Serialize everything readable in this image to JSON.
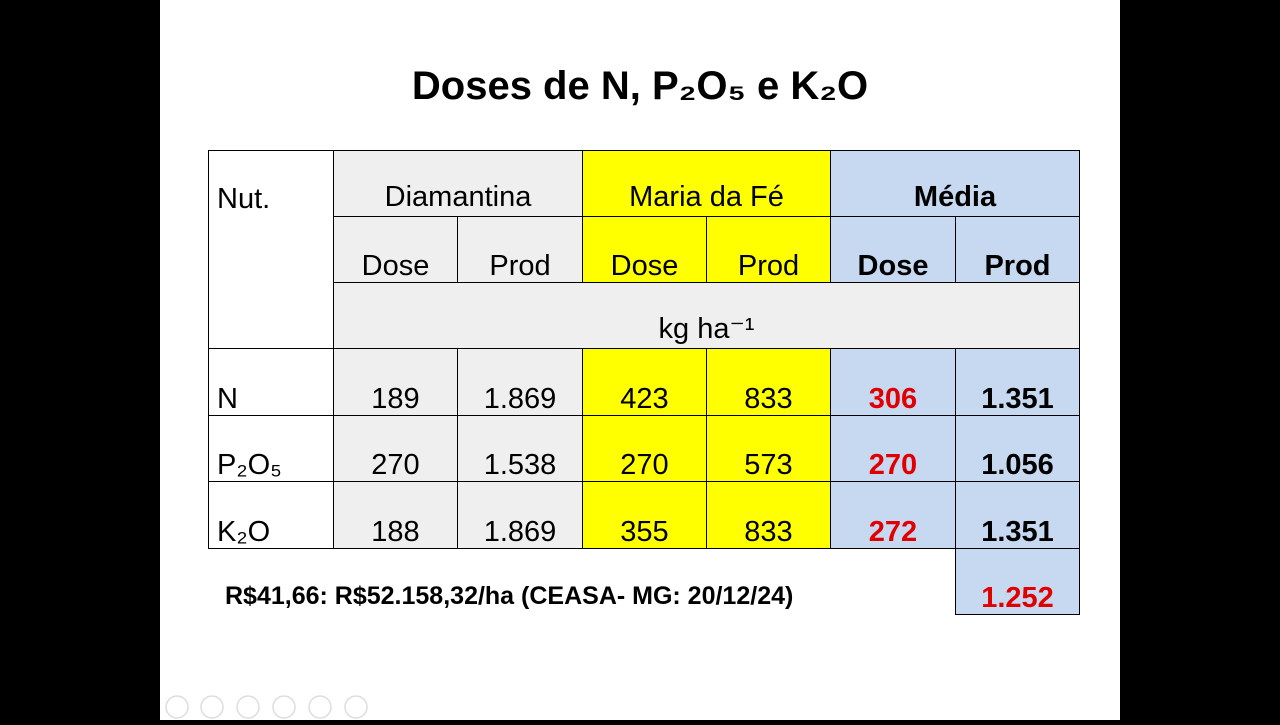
{
  "title": "Doses de N, P₂O₅ e K₂O",
  "table": {
    "corner": "Nut.",
    "groups": [
      "Diamantina",
      "Maria da Fé",
      "Média"
    ],
    "subheaders": [
      "Dose",
      "Prod",
      "Dose",
      "Prod",
      "Dose",
      "Prod"
    ],
    "unit": "kg ha⁻¹",
    "rows": [
      [
        "N",
        "189",
        "1.869",
        "423",
        "833",
        "306",
        "1.351"
      ],
      [
        "P₂O₅",
        "270",
        "1.538",
        "270",
        "573",
        "270",
        "1.056"
      ],
      [
        "K₂O",
        "188",
        "1.869",
        "355",
        "833",
        "272",
        "1.351"
      ]
    ],
    "extra": "1.252"
  },
  "footnote": "R$41,66: R$52.158,32/ha (CEASA- MG: 20/12/24)"
}
